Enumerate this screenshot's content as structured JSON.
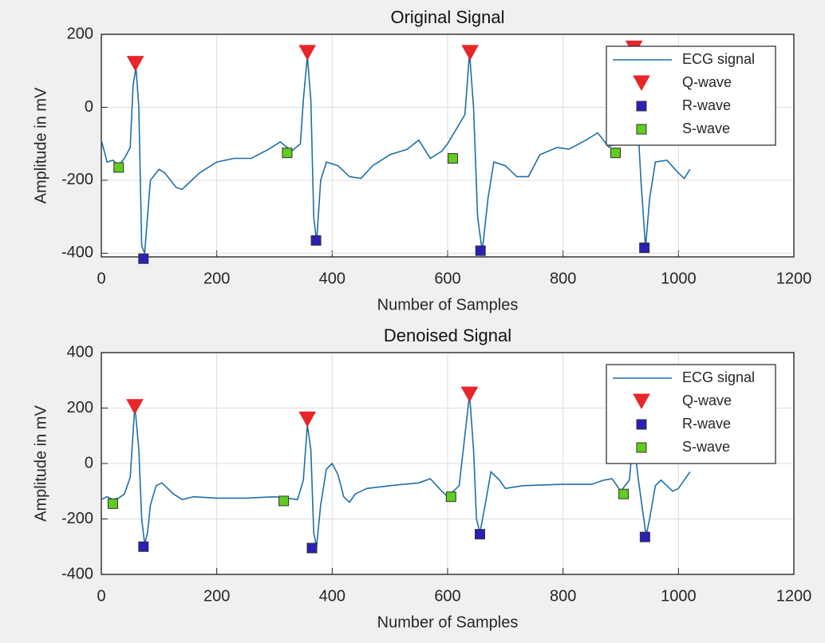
{
  "chart_data": [
    {
      "type": "line",
      "title": "Original Signal",
      "xlabel": "Number of Samples",
      "ylabel": "Amplitude in mV",
      "xlim": [
        0,
        1200
      ],
      "xticks": [
        0,
        200,
        400,
        600,
        800,
        1000,
        1200
      ],
      "ylim": [
        -410,
        200
      ],
      "yticks": [
        -400,
        -200,
        0,
        200
      ],
      "grid": true,
      "legend": "northeast",
      "series": [
        {
          "name": "ECG signal",
          "color": "#1f6ea8",
          "mode": "line",
          "x": [
            0,
            10,
            20,
            30,
            40,
            50,
            55,
            60,
            65,
            70,
            75,
            80,
            85,
            95,
            100,
            110,
            120,
            130,
            140,
            150,
            170,
            200,
            230,
            260,
            290,
            310,
            330,
            345,
            350,
            357,
            363,
            368,
            373,
            380,
            390,
            410,
            430,
            450,
            470,
            500,
            530,
            550,
            570,
            590,
            600,
            630,
            638,
            645,
            652,
            660,
            670,
            680,
            700,
            720,
            740,
            760,
            790,
            810,
            840,
            860,
            880,
            900,
            915,
            920,
            928,
            935,
            943,
            950,
            960,
            980,
            1000,
            1010,
            1020
          ],
          "values": [
            -90,
            -150,
            -145,
            -160,
            -140,
            -110,
            60,
            110,
            0,
            -380,
            -400,
            -300,
            -200,
            -180,
            -170,
            -180,
            -200,
            -220,
            -225,
            -210,
            -180,
            -150,
            -140,
            -140,
            -115,
            -95,
            -120,
            -100,
            20,
            140,
            20,
            -300,
            -370,
            -200,
            -150,
            -160,
            -190,
            -195,
            -160,
            -130,
            -115,
            -90,
            -140,
            -120,
            -100,
            -20,
            150,
            0,
            -300,
            -395,
            -250,
            -150,
            -160,
            -190,
            -190,
            -130,
            -110,
            -115,
            -90,
            -70,
            -110,
            -80,
            0,
            150,
            0,
            -200,
            -385,
            -250,
            -150,
            -145,
            -180,
            -195,
            -170
          ]
        },
        {
          "name": "Q-wave",
          "color": "#e8262a",
          "mode": "markers",
          "marker": "triangle-down",
          "x": [
            59,
            357,
            639,
            923
          ],
          "values": [
            120,
            150,
            150,
            162
          ]
        },
        {
          "name": "R-wave",
          "color": "#2b1fb8",
          "mode": "markers",
          "marker": "square",
          "x": [
            73,
            372,
            657,
            941
          ],
          "values": [
            -415,
            -365,
            -393,
            -385
          ]
        },
        {
          "name": "S-wave",
          "color": "#5fcc1e",
          "mode": "markers",
          "marker": "square",
          "x": [
            30,
            322,
            609,
            891
          ],
          "values": [
            -165,
            -125,
            -140,
            -125
          ]
        }
      ]
    },
    {
      "type": "line",
      "title": "Denoised Signal",
      "xlabel": "Number of Samples",
      "ylabel": "Amplitude in mV",
      "xlim": [
        0,
        1200
      ],
      "xticks": [
        0,
        200,
        400,
        600,
        800,
        1000,
        1200
      ],
      "ylim": [
        -400,
        400
      ],
      "yticks": [
        -400,
        -200,
        0,
        200,
        400
      ],
      "grid": true,
      "legend": "northeast",
      "series": [
        {
          "name": "ECG signal",
          "color": "#1f6ea8",
          "mode": "line",
          "x": [
            0,
            10,
            20,
            30,
            40,
            50,
            58,
            65,
            70,
            75,
            80,
            85,
            95,
            105,
            115,
            125,
            140,
            160,
            200,
            250,
            300,
            320,
            340,
            350,
            357,
            363,
            368,
            373,
            380,
            390,
            400,
            410,
            420,
            430,
            440,
            460,
            500,
            550,
            570,
            590,
            600,
            620,
            638,
            645,
            650,
            656,
            665,
            675,
            690,
            700,
            730,
            800,
            850,
            870,
            885,
            900,
            915,
            922,
            930,
            940,
            944,
            950,
            960,
            970,
            990,
            1000,
            1020
          ],
          "values": [
            -130,
            -120,
            -130,
            -125,
            -110,
            -50,
            210,
            50,
            -200,
            -290,
            -250,
            -150,
            -80,
            -70,
            -90,
            -110,
            -130,
            -120,
            -125,
            -125,
            -120,
            -125,
            -130,
            -60,
            140,
            50,
            -250,
            -300,
            -150,
            -20,
            0,
            -40,
            -120,
            -140,
            -110,
            -90,
            -80,
            -70,
            -55,
            -100,
            -120,
            -80,
            250,
            50,
            -200,
            -250,
            -150,
            -30,
            -60,
            -90,
            -80,
            -75,
            -75,
            -60,
            -55,
            -100,
            -60,
            100,
            -50,
            -200,
            -260,
            -200,
            -80,
            -60,
            -100,
            -90,
            -30
          ]
        },
        {
          "name": "Q-wave",
          "color": "#e8262a",
          "mode": "markers",
          "marker": "triangle-down",
          "x": [
            58,
            357,
            638
          ],
          "values": [
            205,
            160,
            250
          ]
        },
        {
          "name": "R-wave",
          "color": "#2b1fb8",
          "mode": "markers",
          "marker": "square",
          "x": [
            73,
            365,
            656,
            942
          ],
          "values": [
            -300,
            -305,
            -255,
            -265
          ]
        },
        {
          "name": "S-wave",
          "color": "#5fcc1e",
          "mode": "markers",
          "marker": "square",
          "x": [
            20,
            316,
            606,
            905
          ],
          "values": [
            -145,
            -135,
            -120,
            -110
          ]
        }
      ]
    }
  ]
}
